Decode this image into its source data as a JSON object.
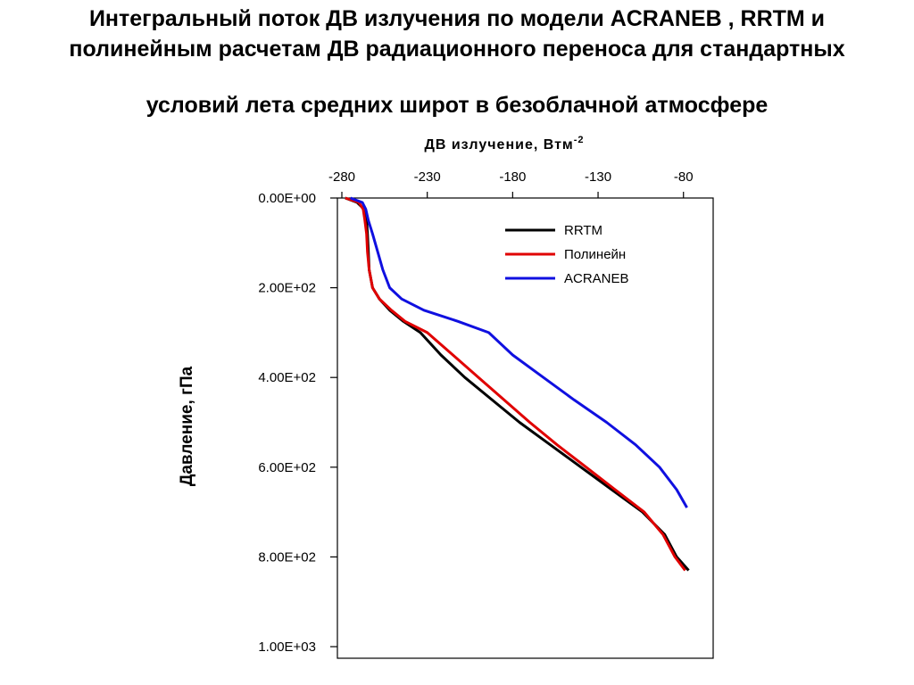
{
  "title_lines": [
    "Интегральный поток ДВ излучения по модели ACRANEB , RRTM  и",
    "полинейным расчетам ДВ радиационного переноса для стандартных",
    "условий лета средних широт в безоблачной атмосфере"
  ],
  "chart_data": {
    "type": "line",
    "title": "Интегральный поток ДВ излучения по модели ACRANEB , RRTM  и полинейным расчетам ДВ радиационного переноса для стандартных условий лета средних широт в безоблачной атмосфере",
    "xlabel": "ДВ излучение, Втм",
    "xlabel_superscript": "-2",
    "ylabel": "Давление, гПа",
    "xlim": [
      -280,
      -60
    ],
    "ylim": [
      1000,
      0
    ],
    "y_inverted": true,
    "x_axis_position": "top",
    "x_ticks": [
      -280,
      -230,
      -180,
      -130,
      -80
    ],
    "x_tick_labels": [
      "-280",
      "-230",
      "-180",
      "-130",
      "-80"
    ],
    "y_ticks": [
      0,
      200,
      400,
      600,
      800,
      1000
    ],
    "y_tick_labels": [
      "0.00E+00",
      "2.00E+02",
      "4.00E+02",
      "6.00E+02",
      "8.00E+02",
      "1.00E+03"
    ],
    "grid": false,
    "legend_position": "top-right",
    "series": [
      {
        "name": "RRTM",
        "color": "#000000",
        "x": [
          -278,
          -271,
          -267,
          -265.5,
          -265,
          -264.5,
          -264,
          -262,
          -258,
          -252,
          -244,
          -234,
          -222,
          -208,
          -192,
          -176,
          -158,
          -140,
          -122,
          -104,
          -91,
          -84,
          -77
        ],
        "y": [
          0,
          10,
          25,
          50,
          80,
          120,
          160,
          200,
          225,
          250,
          275,
          300,
          350,
          400,
          450,
          500,
          550,
          600,
          650,
          700,
          750,
          800,
          830
        ]
      },
      {
        "name": "Полинейн",
        "color": "#e00000",
        "x": [
          -278,
          -270,
          -267.5,
          -266.5,
          -265.5,
          -265,
          -264,
          -262,
          -258,
          -251,
          -243,
          -230,
          -215,
          -200,
          -185,
          -170,
          -154,
          -137,
          -120,
          -103,
          -92,
          -85,
          -79
        ],
        "y": [
          0,
          10,
          25,
          50,
          80,
          120,
          160,
          200,
          225,
          250,
          275,
          300,
          350,
          400,
          450,
          500,
          550,
          600,
          650,
          700,
          750,
          800,
          830
        ]
      },
      {
        "name": "ACRANEB",
        "color": "#1010e0",
        "x": [
          -275,
          -268,
          -266,
          -264.5,
          -262,
          -259,
          -256,
          -252,
          -245,
          -232,
          -212,
          -194,
          -180,
          -162,
          -144,
          -125,
          -108,
          -94,
          -84,
          -78
        ],
        "y": [
          0,
          10,
          25,
          50,
          80,
          120,
          160,
          200,
          225,
          250,
          275,
          300,
          350,
          400,
          450,
          500,
          550,
          600,
          650,
          690
        ]
      }
    ]
  }
}
